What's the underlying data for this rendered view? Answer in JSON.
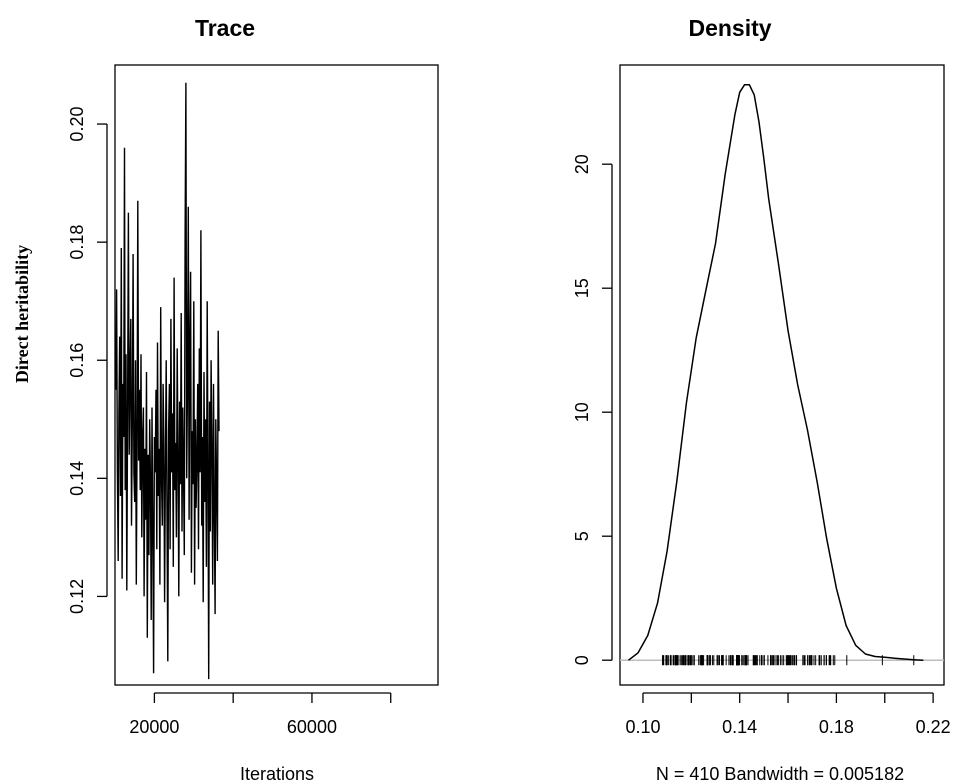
{
  "chart_data": [
    {
      "type": "line",
      "panel": "trace",
      "title": "Trace",
      "xlabel": "Iterations",
      "ylabel": "Direct heritability",
      "xlim": [
        10000,
        92000
      ],
      "ylim": [
        0.105,
        0.21
      ],
      "x_ticks": [
        20000,
        40000,
        60000,
        80000
      ],
      "x_tick_labels": [
        "20000",
        "",
        "60000",
        ""
      ],
      "y_ticks": [
        0.12,
        0.14,
        0.16,
        0.18,
        0.2
      ],
      "y_tick_labels": [
        "0.12",
        "0.14",
        "0.16",
        "0.18",
        "0.20"
      ],
      "series": [
        {
          "x_start": 10200,
          "x_step": 200,
          "values": [
            0.155,
            0.172,
            0.141,
            0.126,
            0.151,
            0.164,
            0.137,
            0.179,
            0.123,
            0.156,
            0.147,
            0.196,
            0.138,
            0.161,
            0.121,
            0.152,
            0.185,
            0.144,
            0.158,
            0.167,
            0.132,
            0.149,
            0.178,
            0.141,
            0.136,
            0.16,
            0.122,
            0.148,
            0.187,
            0.143,
            0.155,
            0.138,
            0.161,
            0.13,
            0.147,
            0.152,
            0.12,
            0.145,
            0.133,
            0.158,
            0.113,
            0.144,
            0.127,
            0.15,
            0.139,
            0.116,
            0.152,
            0.132,
            0.107,
            0.147,
            0.141,
            0.155,
            0.128,
            0.163,
            0.137,
            0.145,
            0.122,
            0.169,
            0.14,
            0.132,
            0.156,
            0.147,
            0.119,
            0.142,
            0.16,
            0.134,
            0.109,
            0.148,
            0.156,
            0.128,
            0.167,
            0.141,
            0.151,
            0.125,
            0.174,
            0.138,
            0.146,
            0.13,
            0.162,
            0.144,
            0.12,
            0.153,
            0.139,
            0.168,
            0.131,
            0.152,
            0.142,
            0.127,
            0.181,
            0.207,
            0.14,
            0.156,
            0.186,
            0.133,
            0.161,
            0.175,
            0.124,
            0.148,
            0.139,
            0.17,
            0.122,
            0.15,
            0.135,
            0.143,
            0.156,
            0.128,
            0.162,
            0.141,
            0.182,
            0.132,
            0.147,
            0.119,
            0.158,
            0.136,
            0.15,
            0.125,
            0.17,
            0.14,
            0.106,
            0.153,
            0.131,
            0.16,
            0.145,
            0.122,
            0.156,
            0.134,
            0.117,
            0.15,
            0.139,
            0.126,
            0.165,
            0.148
          ]
        }
      ]
    },
    {
      "type": "line",
      "panel": "density",
      "title": "Density",
      "xlabel": "N = 410   Bandwidth = 0.005182",
      "ylabel": "",
      "xlim": [
        0.0905,
        0.2245
      ],
      "ylim": [
        -1.0,
        24.0
      ],
      "x_ticks": [
        0.1,
        0.12,
        0.14,
        0.16,
        0.18,
        0.2,
        0.22
      ],
      "x_tick_labels": [
        "0.10",
        "",
        "0.14",
        "",
        "0.18",
        "",
        "0.22"
      ],
      "y_ticks": [
        0,
        5,
        10,
        15,
        20
      ],
      "y_tick_labels": [
        "0",
        "5",
        "10",
        "15",
        "20"
      ],
      "series": [
        {
          "x": [
            0.094,
            0.098,
            0.102,
            0.106,
            0.11,
            0.114,
            0.118,
            0.122,
            0.126,
            0.13,
            0.134,
            0.138,
            0.14,
            0.142,
            0.144,
            0.146,
            0.148,
            0.15,
            0.152,
            0.156,
            0.16,
            0.164,
            0.168,
            0.172,
            0.176,
            0.18,
            0.184,
            0.188,
            0.192,
            0.196,
            0.2,
            0.204,
            0.208,
            0.212,
            0.216
          ],
          "values": [
            0.0,
            0.3,
            1.0,
            2.3,
            4.4,
            7.2,
            10.4,
            13.0,
            14.9,
            16.8,
            19.6,
            22.0,
            22.9,
            23.2,
            23.2,
            22.8,
            21.7,
            20.2,
            18.6,
            16.0,
            13.3,
            11.1,
            9.3,
            7.2,
            4.9,
            2.9,
            1.4,
            0.6,
            0.25,
            0.15,
            0.12,
            0.08,
            0.05,
            0.02,
            0.0
          ]
        }
      ],
      "rug": {
        "range": [
          0.105,
          0.187
        ],
        "dense_range": [
          0.108,
          0.178
        ],
        "isolated": [
          0.199,
          0.212
        ],
        "count": 410
      }
    }
  ]
}
